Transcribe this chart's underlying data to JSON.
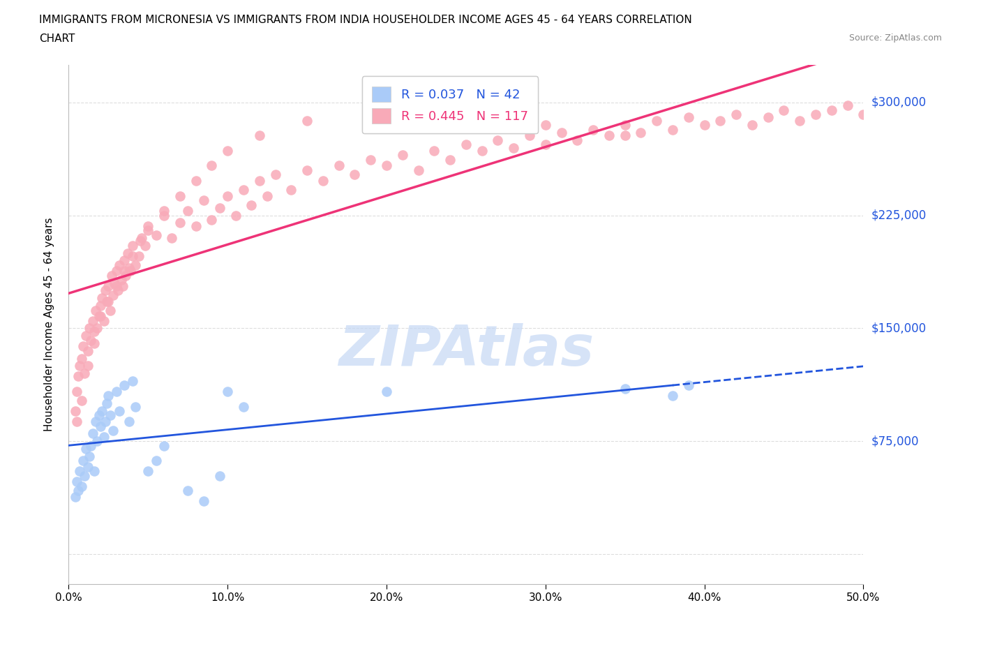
{
  "title_line1": "IMMIGRANTS FROM MICRONESIA VS IMMIGRANTS FROM INDIA HOUSEHOLDER INCOME AGES 45 - 64 YEARS CORRELATION",
  "title_line2": "CHART",
  "source": "Source: ZipAtlas.com",
  "ylabel": "Householder Income Ages 45 - 64 years",
  "xlim": [
    0.0,
    0.5
  ],
  "ylim": [
    -20000,
    325000
  ],
  "yticks": [
    0,
    75000,
    150000,
    225000,
    300000
  ],
  "ytick_labels": [
    "$0",
    "$75,000",
    "$150,000",
    "$225,000",
    "$300,000"
  ],
  "xticks": [
    0.0,
    0.1,
    0.2,
    0.3,
    0.4,
    0.5
  ],
  "xtick_labels": [
    "0.0%",
    "10.0%",
    "20.0%",
    "30.0%",
    "40.0%",
    "50.0%"
  ],
  "micronesia_color": "#aacbf8",
  "india_color": "#f8aab8",
  "micronesia_line_color": "#2255dd",
  "india_line_color": "#ee3377",
  "R_micronesia": 0.037,
  "N_micronesia": 42,
  "R_india": 0.445,
  "N_india": 117,
  "watermark_text": "ZIPAtlas",
  "watermark_color": "#c5d8f5",
  "background_color": "#ffffff",
  "grid_color": "#dddddd",
  "axis_label_color": "#2255dd",
  "title_fontsize": 11,
  "label_fontsize": 11,
  "tick_fontsize": 11,
  "legend_fontsize": 13,
  "micronesia_scatter_x": [
    0.004,
    0.005,
    0.006,
    0.007,
    0.008,
    0.009,
    0.01,
    0.011,
    0.012,
    0.013,
    0.014,
    0.015,
    0.016,
    0.017,
    0.018,
    0.019,
    0.02,
    0.021,
    0.022,
    0.023,
    0.024,
    0.025,
    0.026,
    0.028,
    0.03,
    0.032,
    0.035,
    0.038,
    0.04,
    0.042,
    0.05,
    0.055,
    0.06,
    0.075,
    0.085,
    0.095,
    0.1,
    0.11,
    0.2,
    0.35,
    0.38,
    0.39
  ],
  "micronesia_scatter_y": [
    38000,
    48000,
    42000,
    55000,
    45000,
    62000,
    52000,
    70000,
    58000,
    65000,
    72000,
    80000,
    55000,
    88000,
    75000,
    92000,
    85000,
    95000,
    78000,
    88000,
    100000,
    105000,
    92000,
    82000,
    108000,
    95000,
    112000,
    88000,
    115000,
    98000,
    55000,
    62000,
    72000,
    42000,
    35000,
    52000,
    108000,
    98000,
    108000,
    110000,
    105000,
    112000
  ],
  "india_scatter_x": [
    0.004,
    0.005,
    0.006,
    0.007,
    0.008,
    0.009,
    0.01,
    0.011,
    0.012,
    0.013,
    0.014,
    0.015,
    0.016,
    0.017,
    0.018,
    0.019,
    0.02,
    0.021,
    0.022,
    0.023,
    0.024,
    0.025,
    0.026,
    0.027,
    0.028,
    0.029,
    0.03,
    0.031,
    0.032,
    0.033,
    0.034,
    0.035,
    0.036,
    0.037,
    0.038,
    0.039,
    0.04,
    0.042,
    0.044,
    0.046,
    0.048,
    0.05,
    0.055,
    0.06,
    0.065,
    0.07,
    0.075,
    0.08,
    0.085,
    0.09,
    0.095,
    0.1,
    0.105,
    0.11,
    0.115,
    0.12,
    0.125,
    0.13,
    0.14,
    0.15,
    0.16,
    0.17,
    0.18,
    0.19,
    0.2,
    0.21,
    0.22,
    0.23,
    0.24,
    0.25,
    0.26,
    0.27,
    0.28,
    0.29,
    0.3,
    0.31,
    0.32,
    0.33,
    0.34,
    0.35,
    0.36,
    0.37,
    0.38,
    0.39,
    0.4,
    0.41,
    0.42,
    0.43,
    0.44,
    0.45,
    0.46,
    0.47,
    0.48,
    0.49,
    0.5,
    0.005,
    0.008,
    0.012,
    0.016,
    0.02,
    0.025,
    0.03,
    0.035,
    0.04,
    0.045,
    0.05,
    0.06,
    0.07,
    0.08,
    0.09,
    0.1,
    0.12,
    0.15,
    0.2,
    0.25,
    0.3,
    0.35
  ],
  "india_scatter_y": [
    95000,
    108000,
    118000,
    125000,
    130000,
    138000,
    120000,
    145000,
    135000,
    150000,
    142000,
    155000,
    140000,
    162000,
    150000,
    158000,
    165000,
    170000,
    155000,
    175000,
    168000,
    178000,
    162000,
    185000,
    172000,
    180000,
    188000,
    175000,
    192000,
    182000,
    178000,
    195000,
    185000,
    200000,
    190000,
    188000,
    205000,
    192000,
    198000,
    210000,
    205000,
    215000,
    212000,
    225000,
    210000,
    220000,
    228000,
    218000,
    235000,
    222000,
    230000,
    238000,
    225000,
    242000,
    232000,
    248000,
    238000,
    252000,
    242000,
    255000,
    248000,
    258000,
    252000,
    262000,
    258000,
    265000,
    255000,
    268000,
    262000,
    272000,
    268000,
    275000,
    270000,
    278000,
    272000,
    280000,
    275000,
    282000,
    278000,
    285000,
    280000,
    288000,
    282000,
    290000,
    285000,
    288000,
    292000,
    285000,
    290000,
    295000,
    288000,
    292000,
    295000,
    298000,
    292000,
    88000,
    102000,
    125000,
    148000,
    158000,
    168000,
    178000,
    188000,
    198000,
    208000,
    218000,
    228000,
    238000,
    248000,
    258000,
    268000,
    278000,
    288000,
    298000,
    292000,
    285000,
    278000
  ]
}
